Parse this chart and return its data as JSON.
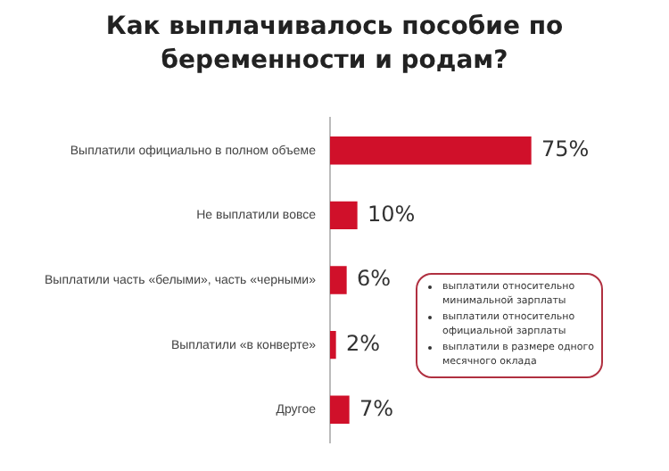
{
  "chart_data": {
    "type": "bar",
    "orientation": "horizontal",
    "title": "Как выплачивалось пособие по беременности и родам?",
    "categories": [
      "Выплатили официально в полном объеме",
      "Не выплатили вовсе",
      "Выплатили часть «белыми», часть «черными»",
      "Выплатили «в конверте»",
      "Другое"
    ],
    "values": [
      75,
      10,
      6,
      2,
      7
    ],
    "value_labels": [
      "75%",
      "10%",
      "6%",
      "2%",
      "7%"
    ],
    "color": "#d0102a",
    "annotations": [
      "выплатили относительно минимальной зарплаты",
      "выплатили относительно официальной зарплаты",
      "выплатили в размере одного месячного оклада"
    ],
    "grid": false,
    "legend": false
  }
}
